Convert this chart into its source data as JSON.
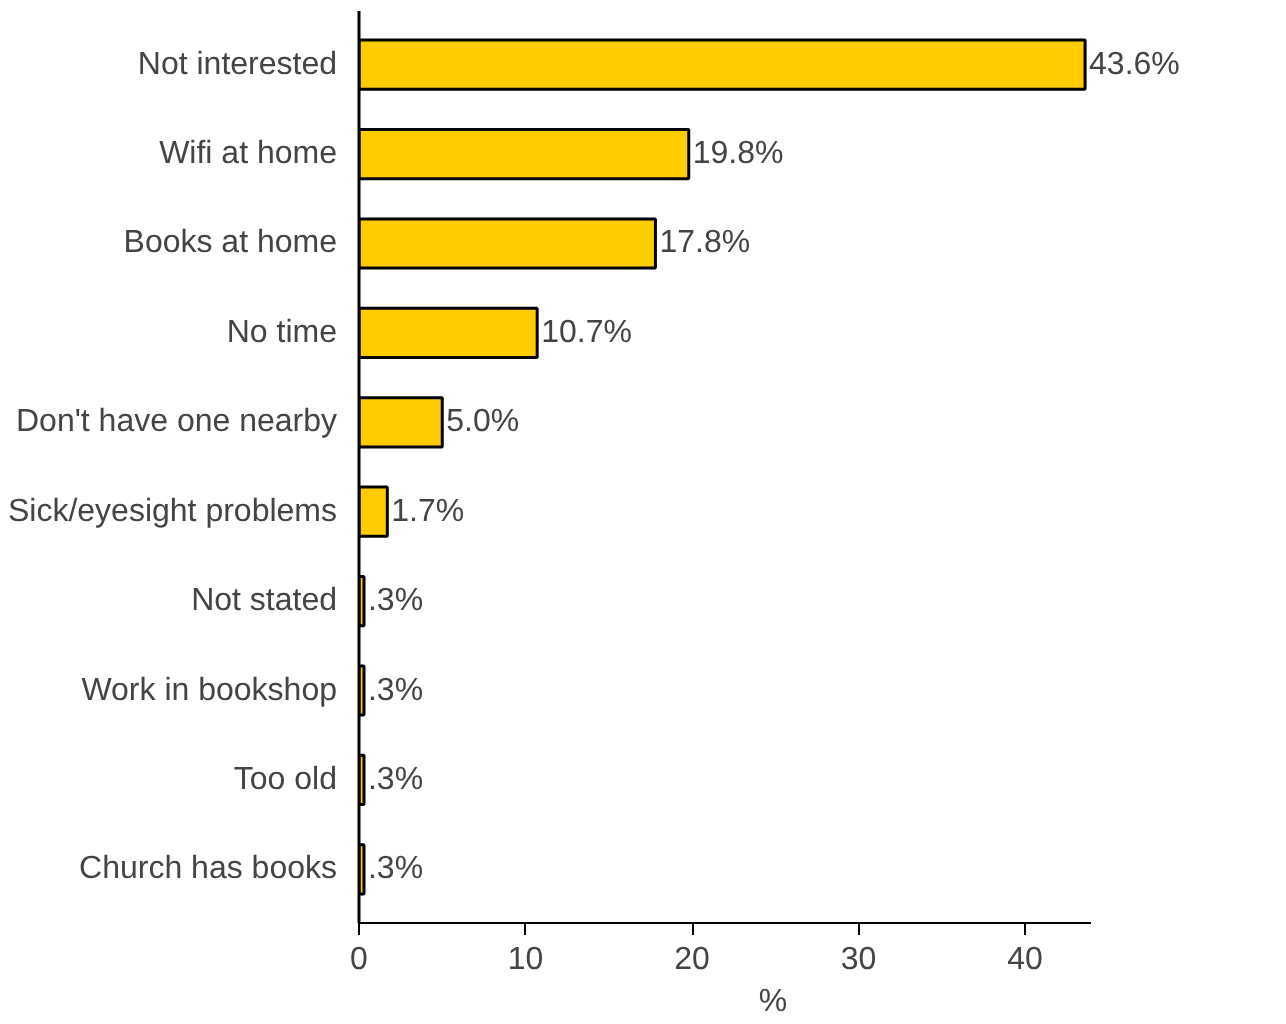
{
  "chart_data": {
    "type": "bar",
    "orientation": "horizontal",
    "xlabel": "%",
    "categories": [
      "Not interested",
      "Wifi at home",
      "Books at home",
      "No time",
      "Don't have one nearby",
      "Sick/eyesight problems",
      "Not stated",
      "Work in bookshop",
      "Too old",
      "Church has books"
    ],
    "values": [
      43.6,
      19.8,
      17.8,
      10.7,
      5.0,
      1.7,
      0.3,
      0.3,
      0.3,
      0.3
    ],
    "value_labels": [
      "43.6%",
      "19.8%",
      "17.8%",
      "10.7%",
      "5.0%",
      "1.7%",
      ".3%",
      ".3%",
      ".3%",
      ".3%"
    ],
    "color": "#ffcc00",
    "xlim": [
      0,
      44
    ],
    "xticks": [
      0,
      10,
      20,
      30,
      40
    ],
    "grid": false,
    "legend": false
  }
}
